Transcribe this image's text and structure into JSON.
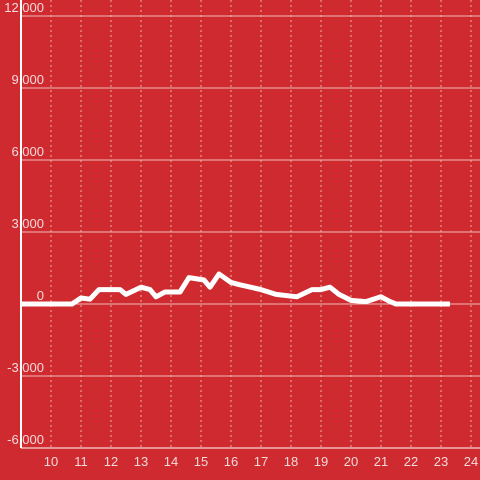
{
  "chart_data": {
    "type": "line",
    "color": "#ffffff",
    "grid": true,
    "xlim": [
      9,
      24.3
    ],
    "xticks": [
      10,
      11,
      12,
      13,
      14,
      15,
      16,
      17,
      18,
      19,
      20,
      21,
      22,
      23,
      24
    ],
    "ylim": [
      -6000,
      12000
    ],
    "yticks": [
      {
        "value": -6000,
        "label": "-6,000"
      },
      {
        "value": -3000,
        "label": "-3,000"
      },
      0,
      {
        "value": 3000,
        "label": "3,000"
      },
      {
        "value": 6000,
        "label": "6,000"
      },
      {
        "value": 9000,
        "label": "9,000"
      },
      {
        "value": 12000,
        "label": "12,000"
      }
    ],
    "x": [
      9,
      10,
      10.7,
      11,
      11.3,
      11.6,
      12.3,
      12.5,
      13,
      13.3,
      13.5,
      13.8,
      14.3,
      14.6,
      15.1,
      15.3,
      15.6,
      16,
      16.3,
      17,
      17.5,
      18.2,
      18.7,
      19,
      19.3,
      19.6,
      20,
      20.5,
      21,
      21.3,
      21.5,
      23.3
    ],
    "values": [
      0,
      0,
      0,
      250,
      200,
      600,
      600,
      400,
      700,
      600,
      300,
      500,
      500,
      1100,
      1000,
      700,
      1250,
      900,
      800,
      600,
      400,
      300,
      600,
      600,
      700,
      400,
      150,
      100,
      300,
      100,
      0,
      0
    ]
  }
}
